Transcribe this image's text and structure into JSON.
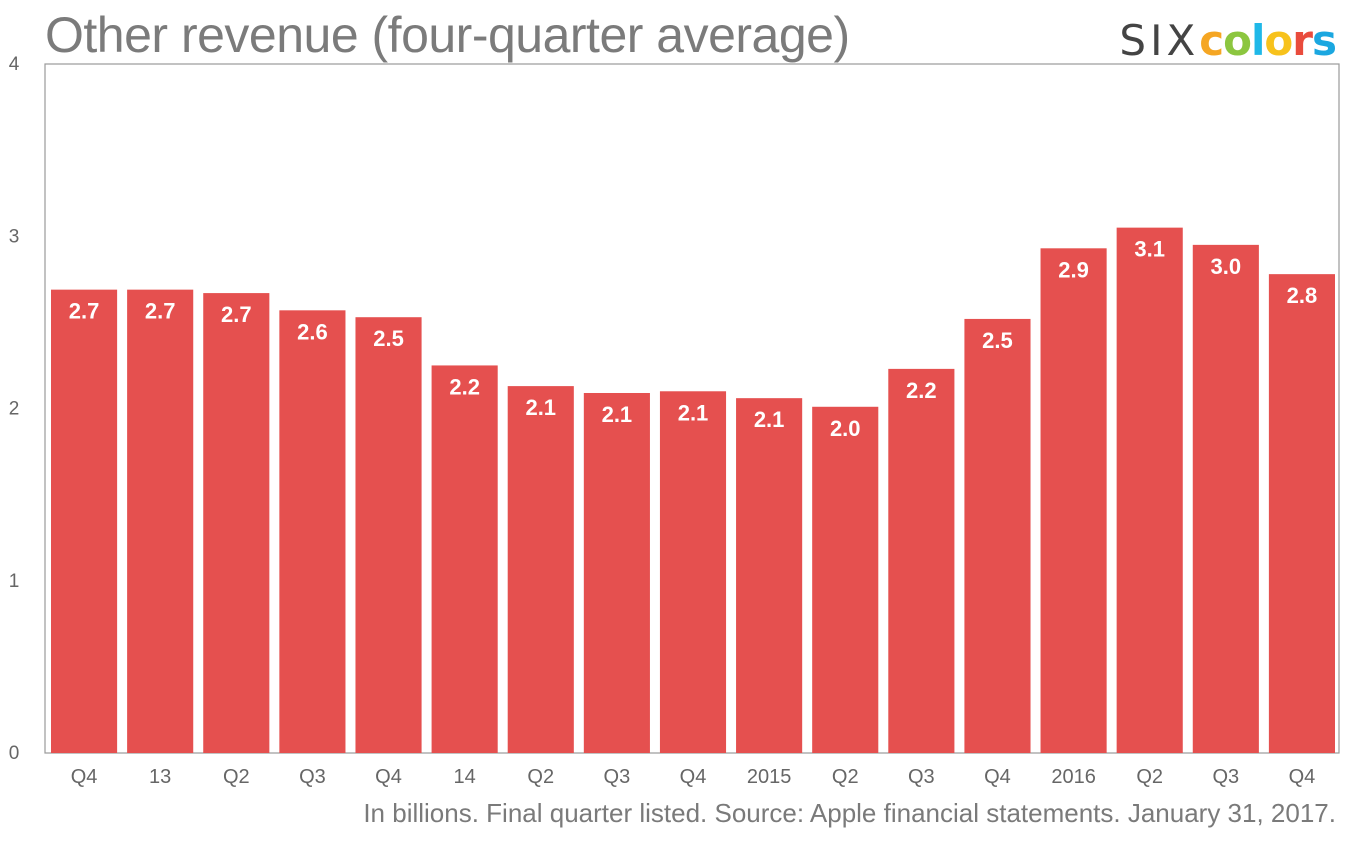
{
  "title": "Other revenue (four-quarter average)",
  "logo": {
    "six": "SIX",
    "letters": [
      "c",
      "o",
      "l",
      "o",
      "r",
      "s"
    ],
    "letter_colors": [
      "#f5a623",
      "#8cc63f",
      "#1fb8e8",
      "#f7c21c",
      "#e94b3c",
      "#1ba7e0"
    ]
  },
  "footnote": "In billions. Final quarter listed. Source: Apple financial statements. January 31, 2017.",
  "colors": {
    "bar": "#e5504f",
    "axis": "#9a9a9a",
    "tick_text": "#666666",
    "label_text": "#ffffff"
  },
  "chart_data": {
    "type": "bar",
    "categories": [
      "Q4",
      "13",
      "Q2",
      "Q3",
      "Q4",
      "14",
      "Q2",
      "Q3",
      "Q4",
      "2015",
      "Q2",
      "Q3",
      "Q4",
      "2016",
      "Q2",
      "Q3",
      "Q4"
    ],
    "values": [
      2.69,
      2.69,
      2.67,
      2.57,
      2.53,
      2.25,
      2.13,
      2.09,
      2.1,
      2.06,
      2.01,
      2.23,
      2.52,
      2.93,
      3.05,
      2.95,
      2.78
    ],
    "value_labels": [
      "2.7",
      "2.7",
      "2.7",
      "2.6",
      "2.5",
      "2.2",
      "2.1",
      "2.1",
      "2.1",
      "2.1",
      "2.0",
      "2.2",
      "2.5",
      "2.9",
      "3.1",
      "3.0",
      "2.8"
    ],
    "ylim": [
      0,
      4
    ],
    "yticks": [
      "0",
      "1",
      "2",
      "3",
      "4"
    ],
    "grid": false
  }
}
